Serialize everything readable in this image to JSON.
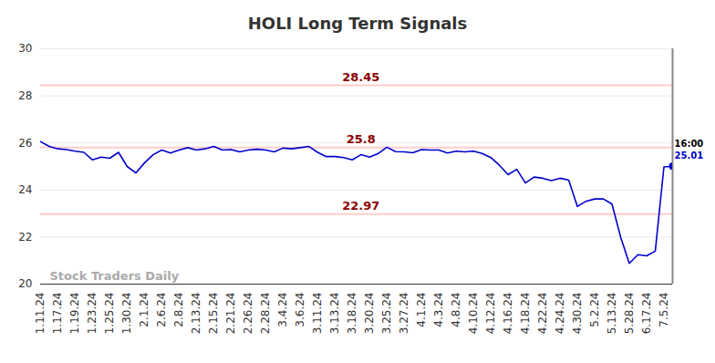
{
  "chart_data": {
    "type": "line",
    "title": "HOLI Long Term Signals",
    "categories": [
      "1.11.24",
      null,
      "1.17.24",
      null,
      "1.19.24",
      null,
      "1.23.24",
      null,
      "1.25.24",
      null,
      "1.30.24",
      null,
      "2.1.24",
      null,
      "2.6.24",
      null,
      "2.8.24",
      null,
      "2.13.24",
      null,
      "2.15.24",
      null,
      "2.21.24",
      null,
      "2.26.24",
      null,
      "2.28.24",
      null,
      "3.4.24",
      null,
      "3.6.24",
      null,
      "3.11.24",
      null,
      "3.13.24",
      null,
      "3.18.24",
      null,
      "3.20.24",
      null,
      "3.25.24",
      null,
      "3.27.24",
      null,
      "4.1.24",
      null,
      "4.3.24",
      null,
      "4.8.24",
      null,
      "4.10.24",
      null,
      "4.12.24",
      null,
      "4.16.24",
      null,
      "4.18.24",
      null,
      "4.22.24",
      null,
      "4.24.24",
      null,
      "4.30.24",
      null,
      "5.2.24",
      null,
      "5.13.24",
      null,
      "5.28.24",
      null,
      "6.17.24",
      null,
      "7.5.24",
      null
    ],
    "values": [
      26.05,
      25.85,
      25.75,
      25.72,
      25.65,
      25.6,
      25.28,
      25.4,
      25.35,
      25.6,
      25.0,
      24.72,
      25.15,
      25.5,
      25.7,
      25.57,
      25.7,
      25.8,
      25.7,
      25.75,
      25.85,
      25.7,
      25.72,
      25.62,
      25.7,
      25.73,
      25.7,
      25.62,
      25.78,
      25.75,
      25.8,
      25.85,
      25.6,
      25.42,
      25.42,
      25.38,
      25.28,
      25.5,
      25.4,
      25.55,
      25.82,
      25.63,
      25.62,
      25.58,
      25.72,
      25.7,
      25.7,
      25.57,
      25.65,
      25.62,
      25.65,
      25.55,
      25.38,
      25.05,
      24.65,
      24.88,
      24.3,
      24.55,
      24.5,
      24.4,
      24.5,
      24.42,
      23.3,
      23.52,
      23.62,
      23.62,
      23.4,
      22.0,
      20.88,
      21.25,
      21.2,
      21.4,
      24.98,
      25.01
    ],
    "color": "#0000cc",
    "ylim": [
      20,
      30
    ],
    "yticks": [
      20,
      22,
      24,
      26,
      28,
      30
    ],
    "grid": true,
    "reference_lines": [
      28.45,
      25.8,
      22.97
    ],
    "last_label": {
      "time": "16:00",
      "value": 25.01
    },
    "watermark": "Stock Traders Daily"
  }
}
